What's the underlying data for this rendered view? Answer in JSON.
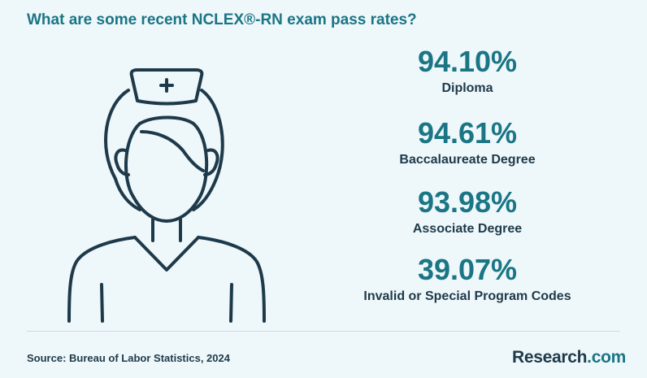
{
  "title": "What are some recent NCLEX®-RN exam pass rates?",
  "illustration_icon": "nurse-icon",
  "stats": [
    {
      "value": "94.10%",
      "label": "Diploma"
    },
    {
      "value": "94.61%",
      "label": "Baccalaureate Degree"
    },
    {
      "value": "93.98%",
      "label": "Associate Degree"
    },
    {
      "value": "39.07%",
      "label": "Invalid or Special Program Codes"
    }
  ],
  "footer": {
    "source": "Source: Bureau of Labor Statistics, 2024",
    "brand_name": "Research",
    "brand_tld": ".com"
  },
  "colors": {
    "background": "#eef7fa",
    "accent": "#1a7585",
    "text_dark": "#1e3a4a"
  }
}
